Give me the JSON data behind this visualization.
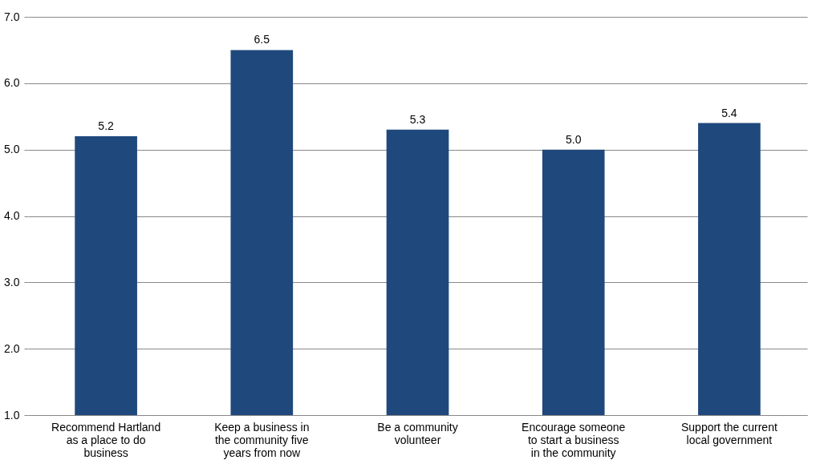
{
  "chart_data": {
    "type": "bar",
    "categories": [
      "Recommend Hartland as a place to do business",
      "Keep a business in the community five years from now",
      "Be a community volunteer",
      "Encourage someone to start a business in the community",
      "Support the current local government"
    ],
    "values": [
      5.2,
      6.5,
      5.3,
      5.0,
      5.4
    ],
    "value_labels": [
      "5.2",
      "6.5",
      "5.3",
      "5.0",
      "5.4"
    ],
    "color": "#1f497d",
    "ylim": [
      1,
      7
    ],
    "yticks": [
      {
        "value": 1,
        "label": "1.0"
      },
      {
        "value": 2,
        "label": "2.0"
      },
      {
        "value": 3,
        "label": "3.0"
      },
      {
        "value": 4,
        "label": "4.0"
      },
      {
        "value": 5,
        "label": "5.0"
      },
      {
        "value": 6,
        "label": "6.0"
      },
      {
        "value": 7,
        "label": "7.0"
      }
    ],
    "grid": "y"
  }
}
